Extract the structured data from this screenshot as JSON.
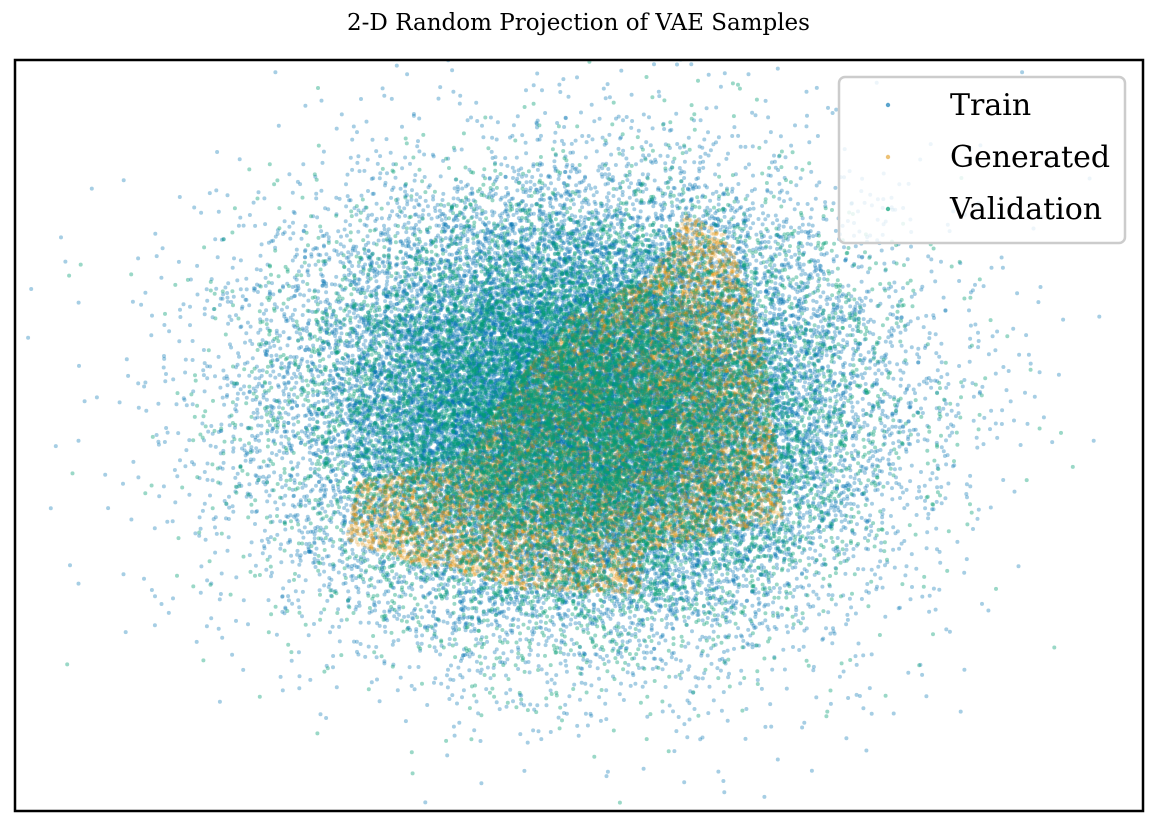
{
  "chart_data": {
    "type": "scatter",
    "title": "2-D Random Projection of VAE Samples",
    "xlabel": "",
    "ylabel": "",
    "ticks_visible": false,
    "grid": false,
    "legend_position": "top-right",
    "xlim": [
      -4.0,
      4.0
    ],
    "ylim": [
      -3.6,
      3.5
    ],
    "series": [
      {
        "name": "Train",
        "color": "#0173b2",
        "marker": "circle",
        "opacity": 0.35,
        "distribution": {
          "kind": "gaussian",
          "count": 26000,
          "mean": [
            0.0,
            0.2
          ],
          "std": [
            1.0,
            1.0
          ]
        },
        "outliers": [
          [
            -3.55,
            -0.1
          ],
          [
            3.65,
            -0.1
          ],
          [
            -3.55,
            -1.45
          ],
          [
            0.3,
            3.4
          ],
          [
            2.5,
            1.5
          ]
        ]
      },
      {
        "name": "Generated",
        "color": "#de8f05",
        "marker": "circle",
        "opacity": 0.25,
        "distribution": {
          "kind": "region",
          "count": 9000,
          "polygon": [
            [
              -1.6,
              -0.5
            ],
            [
              -0.85,
              -0.25
            ],
            [
              -0.6,
              0.2
            ],
            [
              -0.05,
              1.1
            ],
            [
              0.5,
              1.45
            ],
            [
              0.75,
              2.05
            ],
            [
              1.05,
              1.85
            ],
            [
              1.3,
              0.95
            ],
            [
              1.4,
              -0.2
            ],
            [
              1.45,
              -0.85
            ],
            [
              0.45,
              -1.15
            ],
            [
              0.45,
              -1.55
            ],
            [
              -0.4,
              -1.5
            ],
            [
              -1.2,
              -1.25
            ],
            [
              -1.65,
              -1.05
            ]
          ]
        }
      },
      {
        "name": "Validation",
        "color": "#029e73",
        "marker": "circle",
        "opacity": 0.4,
        "distribution": {
          "kind": "gaussian",
          "count": 12000,
          "mean": [
            0.0,
            0.1
          ],
          "std": [
            0.95,
            0.95
          ]
        }
      }
    ]
  }
}
